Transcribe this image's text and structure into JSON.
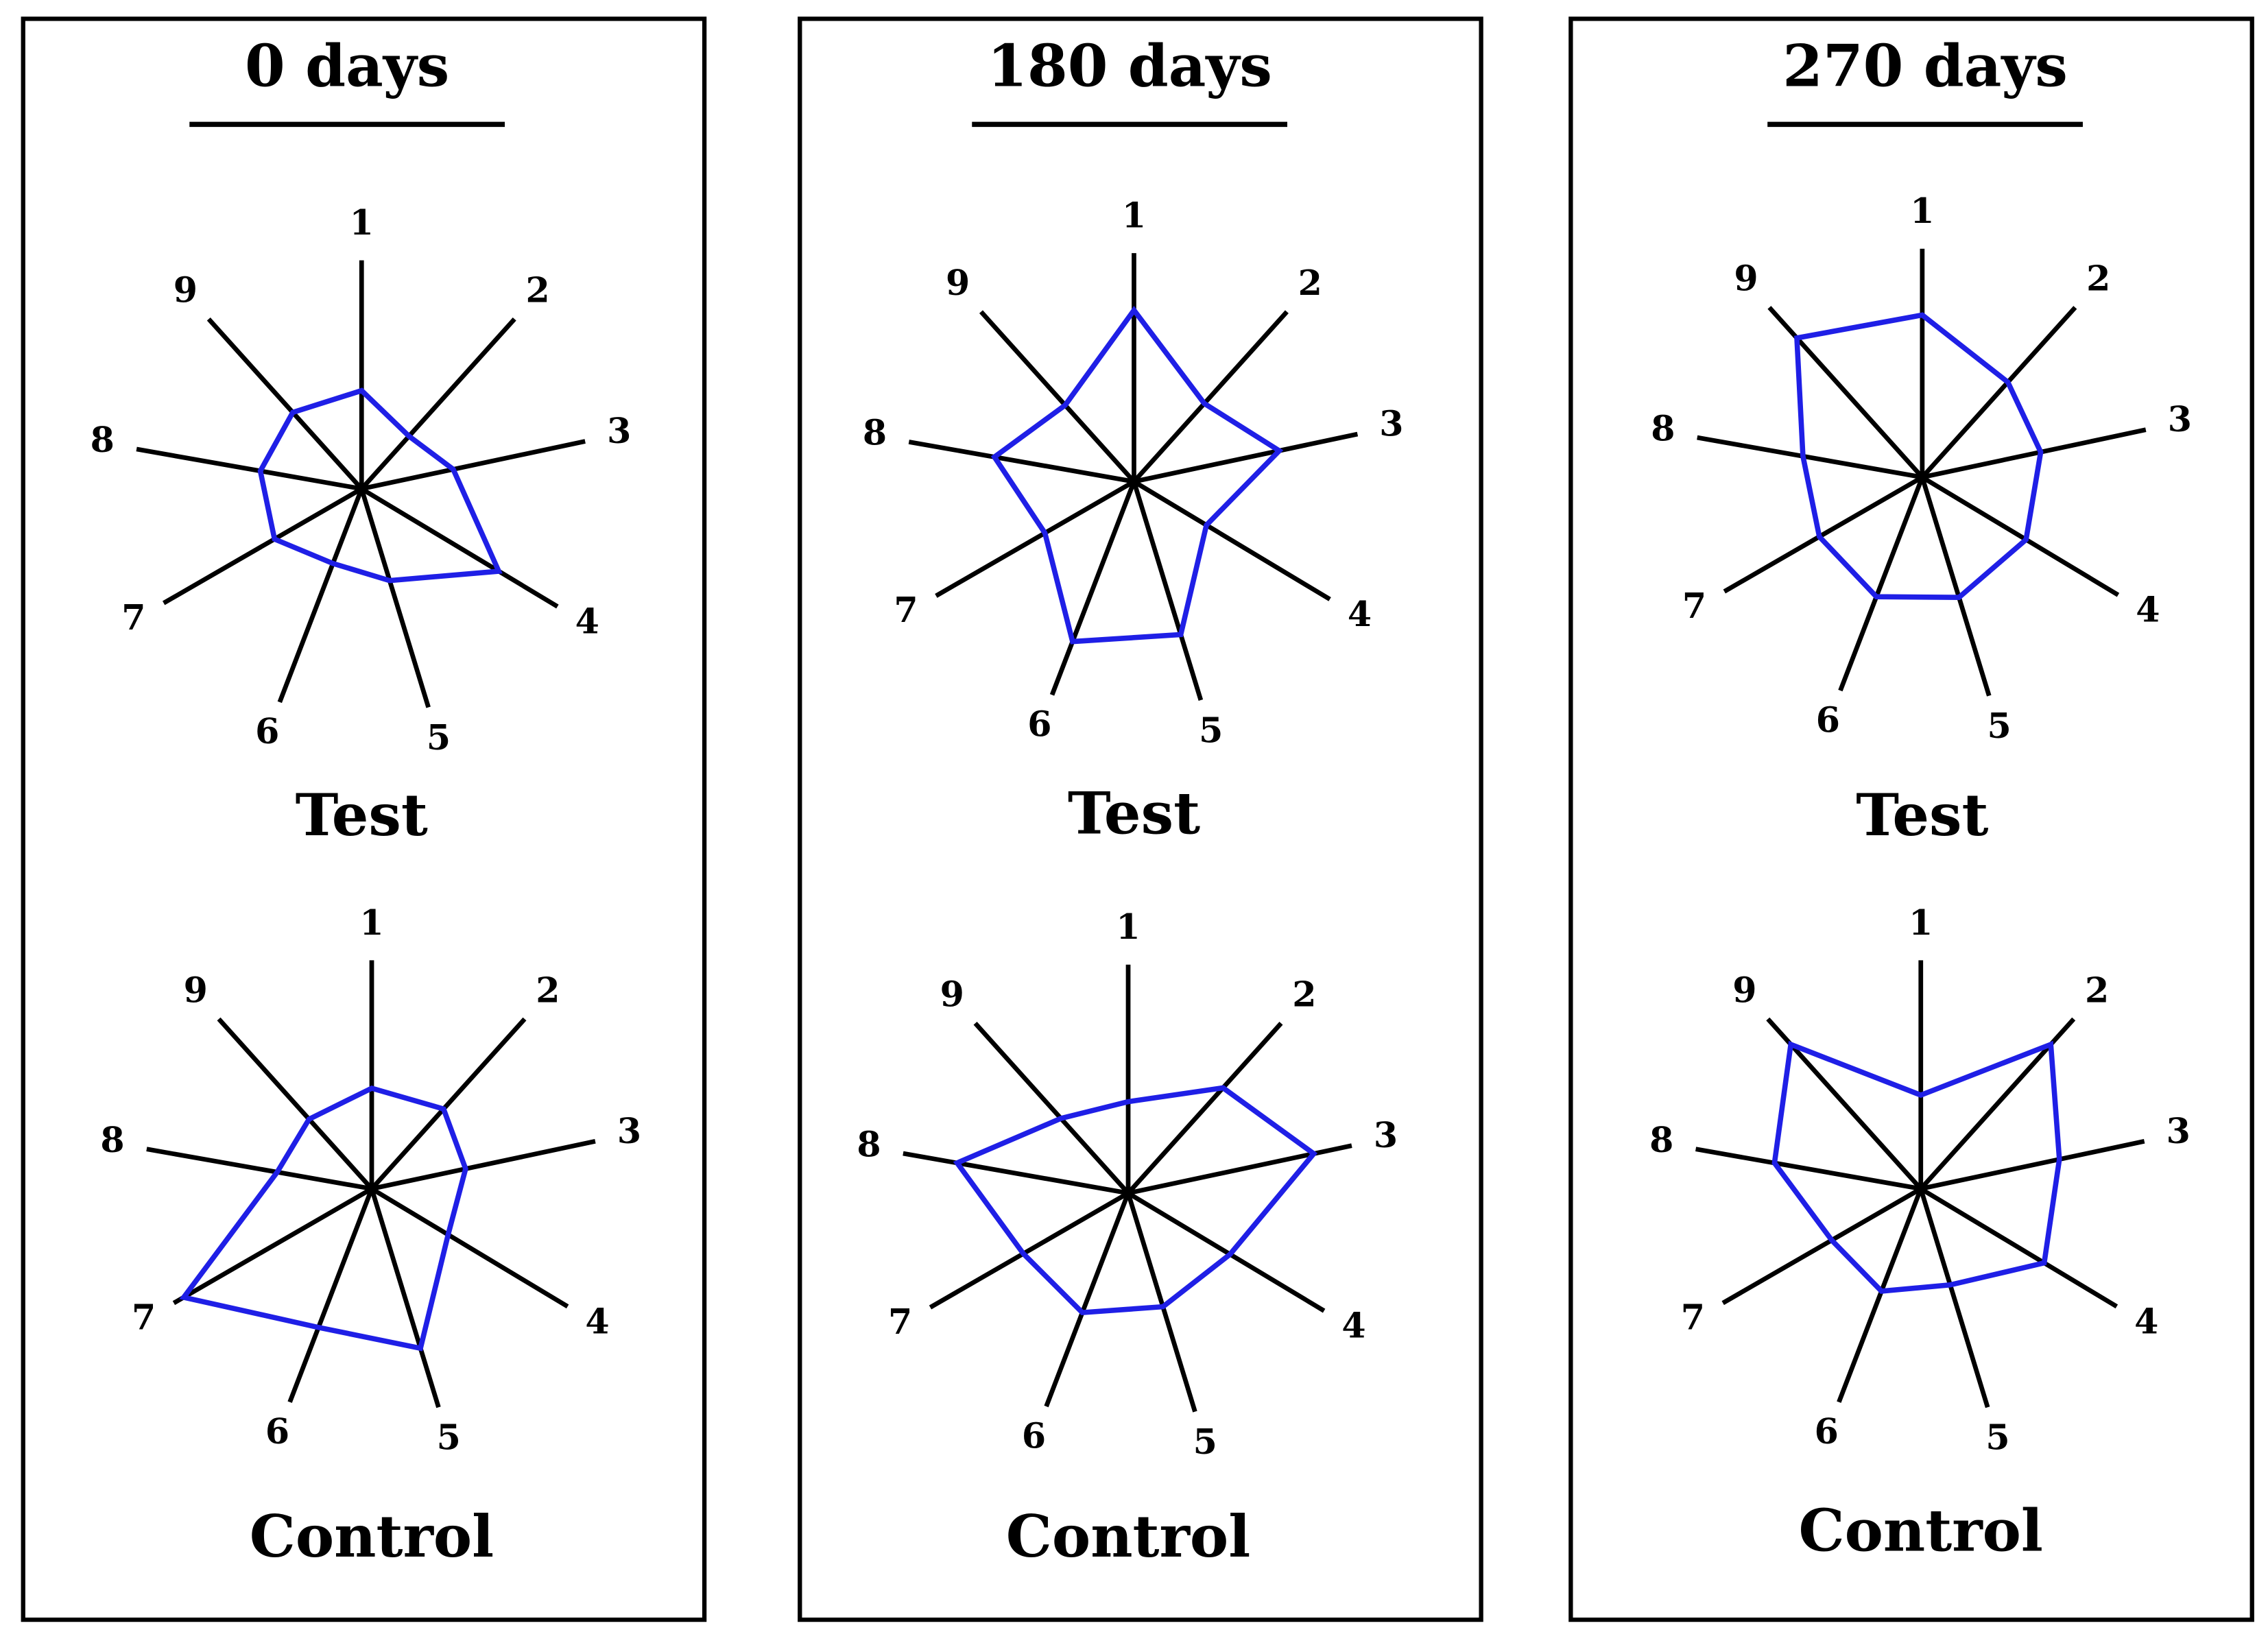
{
  "axis_labels": [
    "1",
    "2",
    "3",
    "4",
    "5",
    "6",
    "7",
    "8",
    "9"
  ],
  "colors": {
    "polygon": "#1f1fe6",
    "spokes": "#000000",
    "frame": "#000000",
    "background": "#ffffff"
  },
  "panels": [
    {
      "title": "0 days"
    },
    {
      "title": "180 days"
    },
    {
      "title": "270 days"
    }
  ],
  "chart_data": [
    {
      "type": "radar",
      "panel": "0 days",
      "title": "Test",
      "axes": [
        "1",
        "2",
        "3",
        "4",
        "5",
        "6",
        "7",
        "8",
        "9"
      ],
      "values": [
        0.43,
        0.31,
        0.41,
        0.7,
        0.42,
        0.35,
        0.44,
        0.45,
        0.45
      ],
      "grid": false,
      "legend": "none"
    },
    {
      "type": "radar",
      "panel": "0 days",
      "title": "Control",
      "axes": [
        "1",
        "2",
        "3",
        "4",
        "5",
        "6",
        "7",
        "8",
        "9"
      ],
      "values": [
        0.44,
        0.47,
        0.42,
        0.39,
        0.73,
        0.65,
        0.95,
        0.42,
        0.41
      ],
      "grid": false,
      "legend": "none"
    },
    {
      "type": "radar",
      "panel": "180 days",
      "title": "Test",
      "axes": [
        "1",
        "2",
        "3",
        "4",
        "5",
        "6",
        "7",
        "8",
        "9"
      ],
      "values": [
        0.75,
        0.46,
        0.65,
        0.37,
        0.7,
        0.75,
        0.45,
        0.62,
        0.45
      ],
      "grid": false,
      "legend": "none"
    },
    {
      "type": "radar",
      "panel": "180 days",
      "title": "Control",
      "axes": [
        "1",
        "2",
        "3",
        "4",
        "5",
        "6",
        "7",
        "8",
        "9"
      ],
      "values": [
        0.4,
        0.62,
        0.83,
        0.52,
        0.52,
        0.56,
        0.53,
        0.76,
        0.44
      ],
      "grid": false,
      "legend": "none"
    },
    {
      "type": "radar",
      "panel": "270 days",
      "title": "Test",
      "axes": [
        "1",
        "2",
        "3",
        "4",
        "5",
        "6",
        "7",
        "8",
        "9"
      ],
      "values": [
        0.71,
        0.56,
        0.53,
        0.53,
        0.55,
        0.56,
        0.52,
        0.53,
        0.82
      ],
      "grid": false,
      "legend": "none"
    },
    {
      "type": "radar",
      "panel": "270 days",
      "title": "Control",
      "axes": [
        "1",
        "2",
        "3",
        "4",
        "5",
        "6",
        "7",
        "8",
        "9"
      ],
      "values": [
        0.41,
        0.85,
        0.62,
        0.63,
        0.44,
        0.48,
        0.45,
        0.65,
        0.85
      ],
      "grid": false,
      "legend": "none"
    }
  ]
}
